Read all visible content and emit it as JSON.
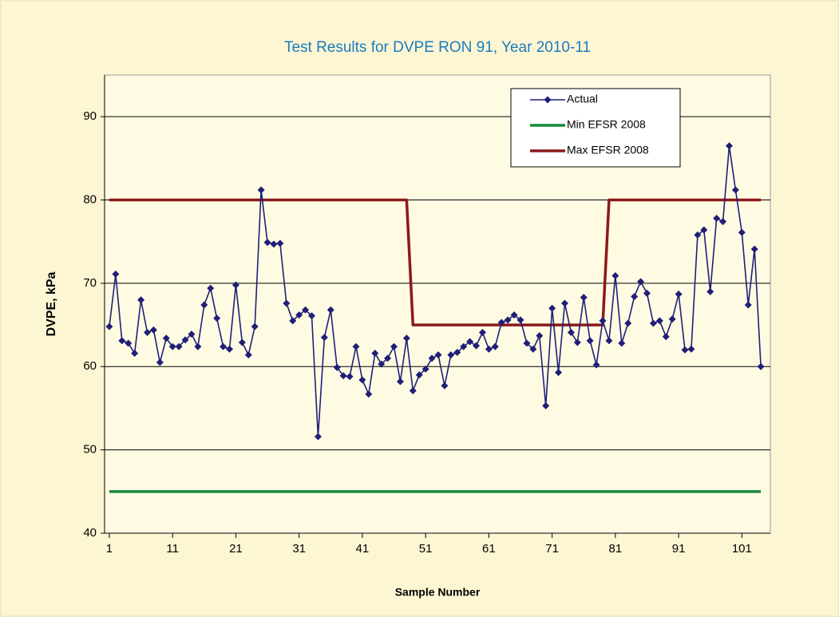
{
  "chart_data": {
    "type": "line",
    "title": "Test Results for DVPE RON 91, Year 2010-11",
    "x_label": "Sample Number",
    "y_label": "DVPE, kPa",
    "x": [
      1,
      2,
      3,
      4,
      5,
      6,
      7,
      8,
      9,
      10,
      11,
      12,
      13,
      14,
      15,
      16,
      17,
      18,
      19,
      20,
      21,
      22,
      23,
      24,
      25,
      26,
      27,
      28,
      29,
      30,
      31,
      32,
      33,
      34,
      35,
      36,
      37,
      38,
      39,
      40,
      41,
      42,
      43,
      44,
      45,
      46,
      47,
      48,
      49,
      50,
      51,
      52,
      53,
      54,
      55,
      56,
      57,
      58,
      59,
      60,
      61,
      62,
      63,
      64,
      65,
      66,
      67,
      68,
      69,
      70,
      71,
      72,
      73,
      74,
      75,
      76,
      77,
      78,
      79,
      80,
      81,
      82,
      83,
      84,
      85,
      86,
      87,
      88,
      89,
      90,
      91,
      92,
      93,
      94,
      95,
      96,
      97,
      98,
      99,
      100,
      101,
      102,
      103,
      104
    ],
    "series": [
      {
        "name": "Actual",
        "color": "#1f1f78",
        "marker": "diamond",
        "values": [
          64.8,
          71.1,
          63.1,
          62.8,
          61.6,
          68.0,
          64.1,
          64.4,
          60.5,
          63.4,
          62.4,
          62.4,
          63.2,
          63.9,
          62.4,
          67.4,
          69.4,
          65.8,
          62.4,
          62.1,
          69.8,
          62.9,
          61.4,
          64.8,
          81.2,
          74.9,
          74.7,
          74.8,
          67.6,
          65.5,
          66.2,
          66.8,
          66.1,
          51.6,
          63.5,
          66.8,
          59.9,
          58.9,
          58.8,
          62.4,
          58.4,
          56.7,
          61.6,
          60.3,
          61.0,
          62.4,
          58.2,
          63.4,
          57.1,
          59.0,
          59.7,
          61.0,
          61.4,
          57.7,
          61.4,
          61.7,
          62.4,
          63.0,
          62.5,
          64.1,
          62.1,
          62.4,
          65.3,
          65.6,
          66.2,
          65.6,
          62.8,
          62.1,
          63.7,
          55.3,
          67.0,
          59.3,
          67.6,
          64.1,
          62.9,
          68.3,
          63.1,
          60.2,
          65.5,
          63.1,
          70.9,
          62.8,
          65.2,
          68.4,
          70.2,
          68.8,
          65.2,
          65.5,
          63.6,
          65.7,
          68.7,
          62.0,
          62.1,
          75.8,
          76.4,
          69.0,
          77.8,
          77.4,
          86.5,
          81.2,
          76.1,
          67.4,
          74.1,
          60.0
        ]
      },
      {
        "name": "Min EFSR 2008",
        "color": "#16883a",
        "values": [
          45,
          45,
          45,
          45,
          45,
          45,
          45,
          45,
          45,
          45,
          45,
          45,
          45,
          45,
          45,
          45,
          45,
          45,
          45,
          45,
          45,
          45,
          45,
          45,
          45,
          45,
          45,
          45,
          45,
          45,
          45,
          45,
          45,
          45,
          45,
          45,
          45,
          45,
          45,
          45,
          45,
          45,
          45,
          45,
          45,
          45,
          45,
          45,
          45,
          45,
          45,
          45,
          45,
          45,
          45,
          45,
          45,
          45,
          45,
          45,
          45,
          45,
          45,
          45,
          45,
          45,
          45,
          45,
          45,
          45,
          45,
          45,
          45,
          45,
          45,
          45,
          45,
          45,
          45,
          45,
          45,
          45,
          45,
          45,
          45,
          45,
          45,
          45,
          45,
          45,
          45,
          45,
          45,
          45,
          45,
          45,
          45,
          45,
          45,
          45,
          45,
          45,
          45,
          45
        ]
      },
      {
        "name": "Max EFSR 2008",
        "color": "#8b1a1a",
        "values": [
          80,
          80,
          80,
          80,
          80,
          80,
          80,
          80,
          80,
          80,
          80,
          80,
          80,
          80,
          80,
          80,
          80,
          80,
          80,
          80,
          80,
          80,
          80,
          80,
          80,
          80,
          80,
          80,
          80,
          80,
          80,
          80,
          80,
          80,
          80,
          80,
          80,
          80,
          80,
          80,
          80,
          80,
          80,
          80,
          80,
          80,
          80,
          80,
          65,
          65,
          65,
          65,
          65,
          65,
          65,
          65,
          65,
          65,
          65,
          65,
          65,
          65,
          65,
          65,
          65,
          65,
          65,
          65,
          65,
          65,
          65,
          65,
          65,
          65,
          65,
          65,
          65,
          65,
          65,
          80,
          80,
          80,
          80,
          80,
          80,
          80,
          80,
          80,
          80,
          80,
          80,
          80,
          80,
          80,
          80,
          80,
          80,
          80,
          80,
          80,
          80,
          80,
          80,
          80
        ]
      }
    ],
    "xlim": [
      0.25,
      105.5
    ],
    "xticks": [
      1,
      11,
      21,
      31,
      41,
      51,
      61,
      71,
      81,
      91,
      101
    ],
    "ylim": [
      40,
      95
    ],
    "yticks": [
      40,
      50,
      60,
      70,
      80,
      90
    ],
    "grid": true,
    "legend": "top-right"
  }
}
